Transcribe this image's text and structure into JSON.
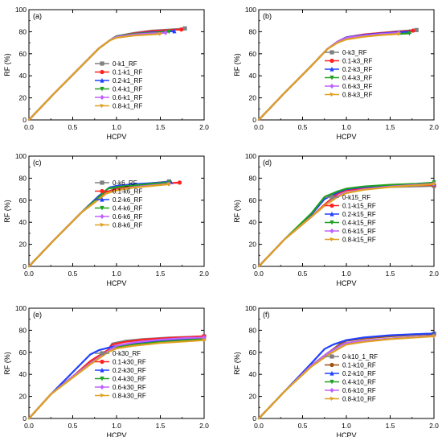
{
  "chart_data": [
    {
      "type": "line",
      "panel_label": "(a)",
      "xlabel": "HCPV",
      "ylabel": "RF (%)",
      "xlim": [
        0,
        2.0
      ],
      "ylim": [
        0,
        100
      ],
      "xticks": [
        "0.0",
        "0.5",
        "1.0",
        "1.5",
        "2.0"
      ],
      "yticks": [
        "0",
        "20",
        "40",
        "60",
        "80",
        "100"
      ],
      "legend_position": "right",
      "series": [
        {
          "name": "0-k1_RF",
          "color": "#808080",
          "x": [
            0,
            0.3,
            0.6,
            0.8,
            0.92,
            1.0,
            1.2,
            1.4,
            1.6,
            1.78
          ],
          "y": [
            0,
            25,
            49,
            65,
            72,
            76,
            79,
            81,
            82,
            83
          ]
        },
        {
          "name": "0.1-k1_RF",
          "color": "#ff2020",
          "x": [
            0,
            0.3,
            0.6,
            0.8,
            0.92,
            1.0,
            1.2,
            1.4,
            1.6,
            1.74
          ],
          "y": [
            0,
            25,
            49,
            65,
            72,
            76,
            78.5,
            80.5,
            81.5,
            82
          ]
        },
        {
          "name": "0.2-k1_RF",
          "color": "#2040ff",
          "x": [
            0,
            0.3,
            0.6,
            0.8,
            0.92,
            1.0,
            1.2,
            1.4,
            1.66
          ],
          "y": [
            0,
            25,
            49,
            65,
            72,
            76,
            78,
            79.5,
            80.5
          ]
        },
        {
          "name": "0.4-k1_RF",
          "color": "#20a020",
          "x": [
            0,
            0.3,
            0.6,
            0.8,
            0.92,
            1.0,
            1.2,
            1.4,
            1.6
          ],
          "y": [
            0,
            25,
            49,
            65,
            72,
            76,
            78,
            79,
            80
          ]
        },
        {
          "name": "0.6-k1_RF",
          "color": "#c060ff",
          "x": [
            0,
            0.3,
            0.6,
            0.8,
            0.92,
            1.0,
            1.2,
            1.4,
            1.56
          ],
          "y": [
            0,
            25,
            49,
            65,
            72,
            75.5,
            77.5,
            78.5,
            79
          ]
        },
        {
          "name": "0.8-k1_RF",
          "color": "#e0a020",
          "x": [
            0,
            0.3,
            0.6,
            0.8,
            0.92,
            1.0,
            1.2,
            1.4,
            1.5
          ],
          "y": [
            0,
            25,
            49,
            65,
            72,
            74.5,
            76.5,
            77.5,
            78
          ]
        }
      ]
    },
    {
      "type": "line",
      "panel_label": "(b)",
      "xlabel": "HCPV",
      "ylabel": "RF (%)",
      "xlim": [
        0,
        2.0
      ],
      "ylim": [
        0,
        100
      ],
      "xticks": [
        "0.0",
        "0.5",
        "1.0",
        "1.5",
        "2.0"
      ],
      "yticks": [
        "0",
        "20",
        "40",
        "60",
        "80",
        "100"
      ],
      "legend_position": "right",
      "series": [
        {
          "name": "0-k3_RF",
          "color": "#808080",
          "x": [
            0,
            0.3,
            0.6,
            0.78,
            0.9,
            1.0,
            1.2,
            1.4,
            1.6,
            1.8
          ],
          "y": [
            0,
            25,
            49,
            64,
            71,
            75,
            77.5,
            79,
            80.5,
            81.5
          ]
        },
        {
          "name": "0.1-k3_RF",
          "color": "#ff2020",
          "x": [
            0,
            0.3,
            0.6,
            0.78,
            0.9,
            1.0,
            1.2,
            1.4,
            1.6,
            1.76
          ],
          "y": [
            0,
            25,
            49,
            64,
            71,
            75,
            77.5,
            79,
            80,
            81
          ]
        },
        {
          "name": "0.2-k3_RF",
          "color": "#2040ff",
          "x": [
            0,
            0.3,
            0.6,
            0.78,
            0.9,
            1.0,
            1.2,
            1.4,
            1.6,
            1.72
          ],
          "y": [
            0,
            25,
            49,
            64,
            71,
            75,
            77,
            78.5,
            79.5,
            80
          ]
        },
        {
          "name": "0.4-k3_RF",
          "color": "#20a020",
          "x": [
            0,
            0.3,
            0.6,
            0.78,
            0.9,
            1.0,
            1.2,
            1.4,
            1.6,
            1.72
          ],
          "y": [
            0,
            25,
            49,
            64,
            71,
            74.5,
            76.5,
            77.5,
            78,
            78.5
          ]
        },
        {
          "name": "0.6-k3_RF",
          "color": "#c060ff",
          "x": [
            0,
            0.3,
            0.6,
            0.78,
            0.9,
            1.0,
            1.2,
            1.4,
            1.6
          ],
          "y": [
            0,
            25,
            49,
            64,
            71,
            74.5,
            76.5,
            78,
            79
          ]
        },
        {
          "name": "0.8-k3_RF",
          "color": "#e0a020",
          "x": [
            0,
            0.3,
            0.6,
            0.78,
            0.9,
            1.0,
            1.2,
            1.4,
            1.6
          ],
          "y": [
            0,
            25,
            49,
            64,
            70,
            73,
            75.5,
            77,
            78
          ]
        }
      ]
    },
    {
      "type": "line",
      "panel_label": "(c)",
      "xlabel": "HCPV",
      "ylabel": "RF (%)",
      "xlim": [
        0,
        2.0
      ],
      "ylim": [
        0,
        100
      ],
      "xticks": [
        "0.0",
        "0.5",
        "1.0",
        "1.5",
        "2.0"
      ],
      "yticks": [
        "0",
        "20",
        "40",
        "60",
        "80",
        "100"
      ],
      "legend_position": "right",
      "series": [
        {
          "name": "0-k6_RF",
          "color": "#808080",
          "x": [
            0,
            0.3,
            0.6,
            0.8,
            0.88,
            1.0,
            1.2,
            1.4,
            1.6
          ],
          "y": [
            0,
            25,
            49,
            64,
            67,
            71,
            73.5,
            75.5,
            77
          ]
        },
        {
          "name": "0.1-k6_RF",
          "color": "#ff2020",
          "x": [
            0,
            0.3,
            0.6,
            0.8,
            0.88,
            1.0,
            1.2,
            1.4,
            1.6,
            1.72
          ],
          "y": [
            0,
            25,
            49,
            62,
            67,
            70,
            72.5,
            74,
            75.5,
            76
          ]
        },
        {
          "name": "0.2-k6_RF",
          "color": "#2040ff",
          "x": [
            0,
            0.3,
            0.6,
            0.8,
            0.92,
            1.0,
            1.2,
            1.4,
            1.62
          ],
          "y": [
            0,
            25,
            49,
            64,
            71.5,
            73,
            74.5,
            75.5,
            76.5
          ]
        },
        {
          "name": "0.4-k6_RF",
          "color": "#20a020",
          "x": [
            0,
            0.3,
            0.6,
            0.8,
            0.9,
            1.0,
            1.2,
            1.4,
            1.6
          ],
          "y": [
            0,
            25,
            49,
            63,
            70.5,
            72,
            73.5,
            75,
            76
          ]
        },
        {
          "name": "0.6-k6_RF",
          "color": "#c060ff",
          "x": [
            0,
            0.3,
            0.6,
            0.8,
            0.88,
            1.0,
            1.2,
            1.4,
            1.6
          ],
          "y": [
            0,
            25,
            49,
            61,
            66,
            69,
            72,
            73.5,
            75
          ]
        },
        {
          "name": "0.8-k6_RF",
          "color": "#e0a020",
          "x": [
            0,
            0.3,
            0.6,
            0.8,
            0.88,
            1.0,
            1.2,
            1.4,
            1.6
          ],
          "y": [
            0,
            25,
            49,
            61,
            66,
            69,
            71.5,
            73,
            74.5
          ]
        }
      ]
    },
    {
      "type": "line",
      "panel_label": "(d)",
      "xlabel": "HCPV",
      "ylabel": "RF (%)",
      "xlim": [
        0,
        2.0
      ],
      "ylim": [
        0,
        100
      ],
      "xticks": [
        "0.0",
        "0.5",
        "1.0",
        "1.5",
        "2.0"
      ],
      "yticks": [
        "0",
        "20",
        "40",
        "60",
        "80",
        "100"
      ],
      "legend_position": "right",
      "series": [
        {
          "name": "0-k15_RF",
          "color": "#808080",
          "x": [
            0,
            0.3,
            0.6,
            0.75,
            0.9,
            1.0,
            1.2,
            1.5,
            1.8,
            2.0
          ],
          "y": [
            0,
            25,
            45,
            56,
            66,
            69.5,
            71,
            72,
            72.5,
            73
          ]
        },
        {
          "name": "0.1-k15_RF",
          "color": "#ff2020",
          "x": [
            0,
            0.3,
            0.6,
            0.75,
            0.9,
            1.0,
            1.2,
            1.5,
            1.8,
            2.0
          ],
          "y": [
            0,
            25,
            45,
            56,
            66,
            69,
            71,
            72.5,
            73.5,
            74
          ]
        },
        {
          "name": "0.2-k15_RF",
          "color": "#2040ff",
          "x": [
            0,
            0.3,
            0.6,
            0.75,
            0.9,
            1.0,
            1.2,
            1.5,
            1.8,
            2.0
          ],
          "y": [
            0,
            25,
            47,
            61,
            67,
            70,
            72,
            73.5,
            74.5,
            75
          ]
        },
        {
          "name": "0.4-k15_RF",
          "color": "#20a020",
          "x": [
            0,
            0.3,
            0.6,
            0.75,
            0.9,
            1.0,
            1.2,
            1.5,
            1.8,
            2.0
          ],
          "y": [
            0,
            25,
            48,
            63,
            68,
            70.5,
            72.5,
            74,
            75,
            76
          ]
        },
        {
          "name": "0.6-k15_RF",
          "color": "#c060ff",
          "x": [
            0,
            0.3,
            0.6,
            0.75,
            0.9,
            1.0,
            1.2,
            1.5,
            1.8,
            2.0
          ],
          "y": [
            0,
            25,
            45,
            55,
            64,
            67,
            70,
            72.5,
            74,
            75
          ]
        },
        {
          "name": "0.8-k15_RF",
          "color": "#e0a020",
          "x": [
            0,
            0.3,
            0.6,
            0.75,
            0.9,
            1.0,
            1.2,
            1.5,
            1.8,
            2.0
          ],
          "y": [
            0,
            25,
            45,
            55,
            63,
            66.5,
            69.5,
            72,
            73.5,
            74.5
          ]
        }
      ]
    },
    {
      "type": "line",
      "panel_label": "(e)",
      "xlabel": "HCPV",
      "ylabel": "RF (%)",
      "xlim": [
        0,
        2.0
      ],
      "ylim": [
        0,
        100
      ],
      "xticks": [
        "0.0",
        "0.5",
        "1.0",
        "1.5",
        "2.0"
      ],
      "yticks": [
        "0",
        "20",
        "40",
        "60",
        "80",
        "100"
      ],
      "legend_position": "right",
      "series": [
        {
          "name": "0-k30_RF",
          "color": "#808080",
          "x": [
            0,
            0.25,
            0.5,
            0.7,
            0.9,
            0.95,
            1.1,
            1.3,
            1.6,
            2.0
          ],
          "y": [
            0,
            22,
            38,
            52,
            62,
            68,
            70.5,
            72,
            73.5,
            74.5
          ]
        },
        {
          "name": "0.1-k30_RF",
          "color": "#ff2020",
          "x": [
            0,
            0.25,
            0.5,
            0.7,
            0.9,
            0.95,
            1.1,
            1.3,
            1.6,
            2.0
          ],
          "y": [
            0,
            22,
            38,
            52,
            62,
            67,
            69.5,
            71.5,
            73,
            74.5
          ]
        },
        {
          "name": "0.2-k30_RF",
          "color": "#2040ff",
          "x": [
            0,
            0.25,
            0.5,
            0.7,
            0.8,
            0.9,
            1.0,
            1.3,
            1.6,
            2.0
          ],
          "y": [
            0,
            22,
            42,
            58,
            62,
            64,
            66,
            69,
            71,
            72.5
          ]
        },
        {
          "name": "0.4-k30_RF",
          "color": "#20a020",
          "x": [
            0,
            0.25,
            0.5,
            0.7,
            0.9,
            1.0,
            1.2,
            1.5,
            1.8,
            2.0
          ],
          "y": [
            0,
            22,
            38,
            50,
            61,
            64.5,
            67,
            69.5,
            71,
            72
          ]
        },
        {
          "name": "0.6-k30_RF",
          "color": "#c060ff",
          "x": [
            0,
            0.25,
            0.5,
            0.7,
            0.9,
            1.0,
            1.2,
            1.5,
            1.8,
            2.0
          ],
          "y": [
            0,
            22,
            38,
            50,
            61,
            66,
            69,
            71.5,
            73,
            73.5
          ]
        },
        {
          "name": "0.8-k30_RF",
          "color": "#e0a020",
          "x": [
            0,
            0.25,
            0.5,
            0.7,
            0.9,
            1.0,
            1.2,
            1.5,
            1.8,
            2.0
          ],
          "y": [
            0,
            22,
            37,
            49,
            60,
            63.5,
            66,
            68.5,
            70,
            71
          ]
        }
      ]
    },
    {
      "type": "line",
      "panel_label": "(f)",
      "xlabel": "HCPV",
      "ylabel": "RF (%)",
      "xlim": [
        0,
        2.0
      ],
      "ylim": [
        0,
        100
      ],
      "xticks": [
        "0.0",
        "0.5",
        "1.0",
        "1.5",
        "2.0"
      ],
      "yticks": [
        "0",
        "20",
        "40",
        "60",
        "80",
        "100"
      ],
      "legend_position": "right",
      "series": [
        {
          "name": "0-k10_1_RF",
          "color": "#808080",
          "x": [
            0,
            0.3,
            0.6,
            0.8,
            0.95,
            1.0,
            1.2,
            1.5,
            1.8,
            2.0
          ],
          "y": [
            0,
            25,
            48,
            60,
            69,
            71,
            73,
            75,
            76.5,
            77
          ]
        },
        {
          "name": "0.1-k10_RF",
          "color": "#a05010",
          "x": [
            0,
            0.3,
            0.6,
            0.8,
            0.95,
            1.0,
            1.2,
            1.5,
            1.8,
            2.0
          ],
          "y": [
            0,
            25,
            48,
            60,
            68.5,
            70.5,
            72.5,
            74.5,
            76,
            76.5
          ]
        },
        {
          "name": "0.2-k10_RF",
          "color": "#2040ff",
          "x": [
            0,
            0.3,
            0.6,
            0.75,
            0.85,
            1.0,
            1.2,
            1.5,
            1.8,
            2.0
          ],
          "y": [
            0,
            25,
            50,
            63,
            67,
            71,
            73.5,
            75.5,
            76.5,
            77
          ]
        },
        {
          "name": "0.4-k10_RF",
          "color": "#20a020",
          "x": [
            0,
            0.3,
            0.6,
            0.8,
            0.95,
            1.0,
            1.2,
            1.5,
            1.8,
            2.0
          ],
          "y": [
            0,
            25,
            48,
            60,
            67,
            68.5,
            70.5,
            72.5,
            74,
            75
          ]
        },
        {
          "name": "0.6-k10_RF",
          "color": "#c060ff",
          "x": [
            0,
            0.3,
            0.6,
            0.8,
            0.95,
            1.0,
            1.2,
            1.5,
            1.8,
            2.0
          ],
          "y": [
            0,
            25,
            48,
            60,
            67,
            68.5,
            70.5,
            72.5,
            74,
            75
          ]
        },
        {
          "name": "0.8-k10_RF",
          "color": "#e0a020",
          "x": [
            0,
            0.3,
            0.6,
            0.8,
            0.95,
            1.0,
            1.2,
            1.5,
            1.8,
            2.0
          ],
          "y": [
            0,
            25,
            47,
            58,
            65,
            67,
            69.5,
            72,
            73.5,
            74.5
          ]
        }
      ]
    }
  ]
}
